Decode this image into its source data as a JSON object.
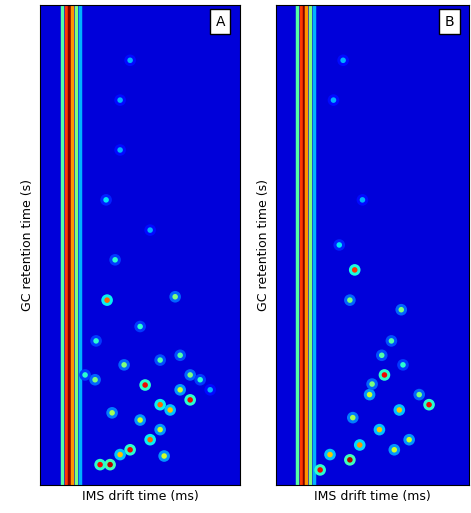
{
  "chart_data": [
    {
      "type": "scatter",
      "title": "A",
      "x_label": "IMS drift time (ms)",
      "y_label": "GC retention time (s)",
      "xlim": [
        0,
        1
      ],
      "ylim": [
        0,
        1
      ],
      "tick_labels": false,
      "color_range": [
        0,
        1
      ],
      "vlines": {
        "x": [
          0.11,
          0.13,
          0.145,
          0.16,
          0.18,
          0.2
        ],
        "values": [
          0.45,
          0.85,
          1.0,
          0.75,
          0.5,
          0.3
        ]
      },
      "peaks": {
        "x": [
          0.335,
          0.375,
          0.675,
          0.4,
          0.55,
          0.75,
          0.525,
          0.6,
          0.65,
          0.75,
          0.55,
          0.45,
          0.35,
          0.3,
          0.4,
          0.6,
          0.5,
          0.7,
          0.275,
          0.225,
          0.8,
          0.85,
          0.4,
          0.45,
          0.33,
          0.6,
          0.42,
          0.28,
          0.5,
          0.7,
          0.36,
          0.62
        ],
        "y": [
          0.385,
          0.469,
          0.392,
          0.698,
          0.531,
          0.229,
          0.208,
          0.167,
          0.156,
          0.177,
          0.094,
          0.073,
          0.042,
          0.042,
          0.063,
          0.115,
          0.135,
          0.198,
          0.219,
          0.229,
          0.219,
          0.198,
          0.802,
          0.885,
          0.594,
          0.26,
          0.25,
          0.3,
          0.33,
          0.27,
          0.15,
          0.06
        ],
        "values": [
          0.8,
          0.4,
          0.5,
          0.3,
          0.3,
          0.5,
          0.9,
          0.8,
          0.7,
          0.9,
          0.8,
          0.9,
          0.95,
          0.9,
          0.7,
          0.6,
          0.6,
          0.6,
          0.5,
          0.4,
          0.4,
          0.3,
          0.3,
          0.3,
          0.35,
          0.45,
          0.5,
          0.4,
          0.4,
          0.45,
          0.55,
          0.6
        ]
      }
    },
    {
      "type": "scatter",
      "title": "B",
      "x_label": "IMS drift time (ms)",
      "y_label": "GC retention time (s)",
      "xlim": [
        0,
        1
      ],
      "ylim": [
        0,
        1
      ],
      "tick_labels": false,
      "color_range": [
        0,
        1
      ],
      "vlines": {
        "x": [
          0.11,
          0.13,
          0.145,
          0.16,
          0.18,
          0.2
        ],
        "values": [
          0.45,
          0.85,
          1.0,
          0.75,
          0.5,
          0.3
        ]
      },
      "peaks": {
        "x": [
          0.41,
          0.385,
          0.651,
          0.564,
          0.795,
          0.641,
          0.538,
          0.436,
          0.385,
          0.231,
          0.282,
          0.615,
          0.692,
          0.487,
          0.744,
          0.3,
          0.35,
          0.45,
          0.55,
          0.6,
          0.4,
          0.5,
          0.66,
          0.33
        ],
        "y": [
          0.448,
          0.385,
          0.365,
          0.229,
          0.167,
          0.156,
          0.115,
          0.083,
          0.052,
          0.031,
          0.063,
          0.073,
          0.094,
          0.188,
          0.188,
          0.802,
          0.885,
          0.594,
          0.27,
          0.3,
          0.14,
          0.21,
          0.25,
          0.5
        ],
        "values": [
          0.85,
          0.5,
          0.5,
          0.9,
          0.9,
          0.7,
          0.7,
          0.75,
          0.95,
          0.9,
          0.7,
          0.6,
          0.6,
          0.6,
          0.5,
          0.3,
          0.3,
          0.3,
          0.45,
          0.45,
          0.55,
          0.5,
          0.4,
          0.35
        ]
      }
    }
  ]
}
